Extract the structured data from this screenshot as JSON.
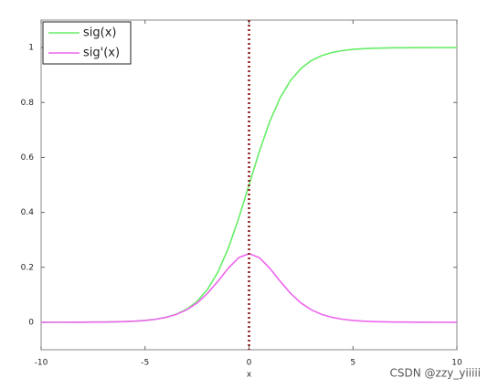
{
  "chart_data": {
    "type": "line",
    "xlabel": "x",
    "x": [
      -10,
      -9.5,
      -9,
      -8.5,
      -8,
      -7.5,
      -7,
      -6.5,
      -6,
      -5.5,
      -5,
      -4.5,
      -4,
      -3.5,
      -3,
      -2.5,
      -2,
      -1.5,
      -1,
      -0.5,
      0,
      0.5,
      1,
      1.5,
      2,
      2.5,
      3,
      3.5,
      4,
      4.5,
      5,
      5.5,
      6,
      6.5,
      7,
      7.5,
      8,
      8.5,
      9,
      9.5,
      10
    ],
    "series": [
      {
        "name": "sig(x)",
        "color": "#66ee66",
        "values": [
          0,
          0.0001,
          0.0001,
          0.0002,
          0.0003,
          0.0006,
          0.0009,
          0.0015,
          0.0025,
          0.0041,
          0.0067,
          0.011,
          0.018,
          0.0293,
          0.0474,
          0.0759,
          0.1192,
          0.1824,
          0.2689,
          0.3775,
          0.5,
          0.6225,
          0.7311,
          0.8176,
          0.8808,
          0.9241,
          0.9526,
          0.9707,
          0.982,
          0.989,
          0.9933,
          0.9959,
          0.9975,
          0.9985,
          0.9991,
          0.9994,
          0.9997,
          0.9998,
          0.9999,
          0.9999,
          1
        ]
      },
      {
        "name": "sig'(x)",
        "color": "#ee66ee",
        "values": [
          0,
          0.0001,
          0.0001,
          0.0002,
          0.0003,
          0.0006,
          0.0009,
          0.0015,
          0.0025,
          0.0041,
          0.0066,
          0.0109,
          0.0177,
          0.0285,
          0.0452,
          0.0701,
          0.105,
          0.1491,
          0.1966,
          0.235,
          0.25,
          0.235,
          0.1966,
          0.1491,
          0.105,
          0.0701,
          0.0452,
          0.0285,
          0.0177,
          0.0109,
          0.0066,
          0.0041,
          0.0025,
          0.0015,
          0.0009,
          0.0006,
          0.0003,
          0.0002,
          0.0001,
          0.0001,
          0
        ]
      }
    ],
    "xlim": [
      -10,
      10
    ],
    "xticks": [
      -10,
      -5,
      0,
      5,
      10
    ],
    "ylim": [
      -0.1,
      1.1
    ],
    "yticks": [
      0,
      0.2,
      0.4,
      0.6,
      0.8,
      1
    ],
    "vline": {
      "x": 0,
      "color": "#8b1a1a"
    },
    "legend": "upper-left",
    "watermark": "CSDN @zzy_yiiiii"
  }
}
